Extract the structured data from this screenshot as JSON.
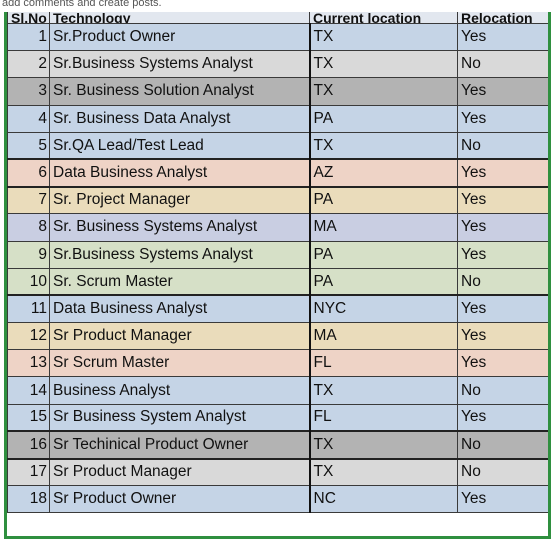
{
  "notice_text": "add comments and create posts.",
  "headers": [
    "Sl.No",
    "Technology",
    "Current location",
    "Relocation"
  ],
  "colors": {
    "blue": "#c5d4e6",
    "gray": "#d9d9d9",
    "dark": "#b3b3b3",
    "peach": "#eed3c6",
    "tan": "#eadcbb",
    "lavender": "#c9cee2",
    "sage": "#d6e0c7",
    "border_green": "#2f8f3f"
  },
  "rows": [
    {
      "no": "1",
      "tech": "Sr.Product Owner",
      "loc": "TX",
      "reloc": "Yes",
      "color": "blue"
    },
    {
      "no": "2",
      "tech": "Sr.Business Systems Analyst",
      "loc": "TX",
      "reloc": "No",
      "color": "gray"
    },
    {
      "no": "3",
      "tech": "Sr. Business Solution Analyst",
      "loc": "TX",
      "reloc": "Yes",
      "color": "dark"
    },
    {
      "no": "4",
      "tech": "Sr. Business Data Analyst",
      "loc": "PA",
      "reloc": "Yes",
      "color": "blue"
    },
    {
      "no": "5",
      "tech": "Sr.QA Lead/Test Lead",
      "loc": "TX",
      "reloc": "No",
      "color": "blue"
    },
    {
      "no": "6",
      "tech": "Data Business Analyst",
      "loc": "AZ",
      "reloc": "Yes",
      "color": "peach"
    },
    {
      "no": "7",
      "tech": "Sr. Project Manager",
      "loc": "PA",
      "reloc": "Yes",
      "color": "tan"
    },
    {
      "no": "8",
      "tech": "Sr. Business Systems Analyst",
      "loc": "MA",
      "reloc": "Yes",
      "color": "lavender"
    },
    {
      "no": "9",
      "tech": "Sr.Business Systems Analyst",
      "loc": "PA",
      "reloc": "Yes",
      "color": "sage"
    },
    {
      "no": "10",
      "tech": "Sr. Scrum Master",
      "loc": "PA",
      "reloc": "No",
      "color": "sage"
    },
    {
      "no": "11",
      "tech": "Data Business Analyst",
      "loc": "NYC",
      "reloc": "Yes",
      "color": "blue"
    },
    {
      "no": "12",
      "tech": "Sr Product Manager",
      "loc": "MA",
      "reloc": "Yes",
      "color": "tan"
    },
    {
      "no": "13",
      "tech": "Sr Scrum Master",
      "loc": "FL",
      "reloc": "Yes",
      "color": "peach"
    },
    {
      "no": "14",
      "tech": "Business Analyst",
      "loc": "TX",
      "reloc": "No",
      "color": "blue"
    },
    {
      "no": "15",
      "tech": "Sr Business System Analyst",
      "loc": "FL",
      "reloc": "Yes",
      "color": "blue"
    },
    {
      "no": "16",
      "tech": "Sr Techinical Product Owner",
      "loc": "TX",
      "reloc": "No",
      "color": "dark"
    },
    {
      "no": "17",
      "tech": "Sr Product Manager",
      "loc": "TX",
      "reloc": "No",
      "color": "gray"
    },
    {
      "no": "18",
      "tech": "Sr Product Owner",
      "loc": "NC",
      "reloc": "Yes",
      "color": "blue"
    }
  ]
}
